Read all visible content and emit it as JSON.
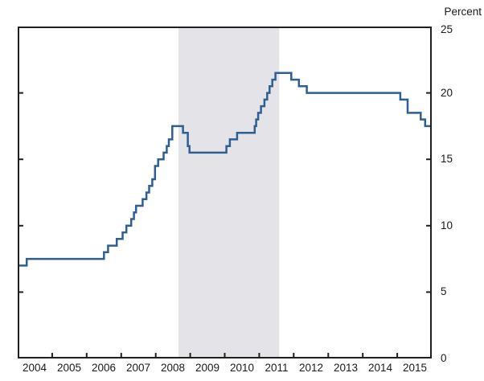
{
  "chart_data": {
    "type": "line",
    "subtype": "step",
    "title": "",
    "unit_label": "Percent",
    "xlabel": "",
    "ylabel": "Percent",
    "x_range": [
      2004,
      2016
    ],
    "y_range": [
      0,
      25
    ],
    "grid": false,
    "legend": "none",
    "y_ticks": [
      0,
      5,
      10,
      15,
      20,
      25
    ],
    "y_inner_tick_values": [
      5,
      10,
      15,
      20
    ],
    "x_boundary_tick_years": [
      2005,
      2006,
      2007,
      2008,
      2009,
      2010,
      2011,
      2012,
      2013,
      2014,
      2015
    ],
    "x_tick_labels": [
      "2004",
      "2005",
      "2006",
      "2007",
      "2008",
      "2009",
      "2010",
      "2011",
      "2012",
      "2013",
      "2014",
      "2015"
    ],
    "shaded_band": {
      "start": 2008.66,
      "end": 2011.58
    },
    "series": [
      {
        "points": [
          [
            2004.0,
            7.0
          ],
          [
            2004.26,
            7.5
          ],
          [
            2006.5,
            8.0
          ],
          [
            2006.62,
            8.5
          ],
          [
            2006.87,
            9.0
          ],
          [
            2007.04,
            9.5
          ],
          [
            2007.15,
            10.0
          ],
          [
            2007.29,
            10.5
          ],
          [
            2007.37,
            11.0
          ],
          [
            2007.43,
            11.5
          ],
          [
            2007.62,
            12.0
          ],
          [
            2007.73,
            12.5
          ],
          [
            2007.81,
            13.0
          ],
          [
            2007.9,
            13.5
          ],
          [
            2007.98,
            14.5
          ],
          [
            2008.07,
            15.0
          ],
          [
            2008.23,
            15.5
          ],
          [
            2008.32,
            16.0
          ],
          [
            2008.38,
            16.5
          ],
          [
            2008.48,
            17.5
          ],
          [
            2008.79,
            17.0
          ],
          [
            2008.93,
            16.0
          ],
          [
            2008.98,
            15.5
          ],
          [
            2010.05,
            16.0
          ],
          [
            2010.15,
            16.5
          ],
          [
            2010.36,
            17.0
          ],
          [
            2010.87,
            17.5
          ],
          [
            2010.91,
            18.0
          ],
          [
            2010.97,
            18.5
          ],
          [
            2011.05,
            19.0
          ],
          [
            2011.15,
            19.5
          ],
          [
            2011.23,
            20.0
          ],
          [
            2011.3,
            20.5
          ],
          [
            2011.38,
            21.0
          ],
          [
            2011.47,
            21.5
          ],
          [
            2011.93,
            21.0
          ],
          [
            2012.15,
            20.5
          ],
          [
            2012.38,
            20.0
          ],
          [
            2015.09,
            19.5
          ],
          [
            2015.3,
            18.5
          ],
          [
            2015.68,
            18.0
          ],
          [
            2015.81,
            17.5
          ]
        ],
        "end_x": 2016.0
      }
    ],
    "colors": {
      "line": "#2e5f94",
      "band": "#e4e4e8",
      "axis": "#1f1f1f",
      "text": "#1a1a1a",
      "background": "#ffffff"
    }
  }
}
